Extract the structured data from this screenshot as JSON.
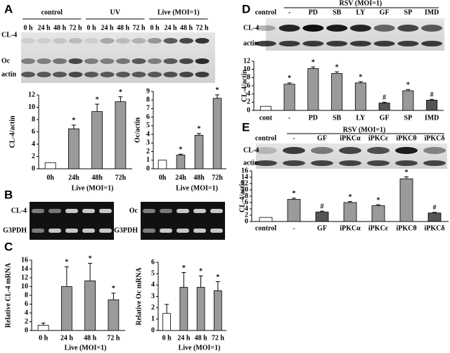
{
  "panel_labels": [
    "A",
    "B",
    "C",
    "D",
    "E"
  ],
  "blot_A": {
    "groups": [
      "control",
      "UV",
      "Live (MOI=1)"
    ],
    "lanes": [
      "0 h",
      "24 h",
      "48 h",
      "72 h",
      "0 h",
      "24 h",
      "48 h",
      "72 h",
      "0 h",
      "24 h",
      "48 h",
      "72 h"
    ],
    "rows": [
      "CL-4",
      "Oc",
      "actin"
    ]
  },
  "gel_B": {
    "left_rows": [
      "CL-4",
      "G3PDH"
    ],
    "right_rows": [
      "Oc",
      "G3PDH"
    ]
  },
  "blot_D": {
    "treatment": "RSV (MOI=1)",
    "control_label": "control",
    "lanes": [
      "-",
      "PD",
      "SB",
      "LY",
      "GF",
      "SP",
      "IMD"
    ],
    "rows": [
      "CL-4",
      "actin"
    ]
  },
  "blot_E": {
    "treatment": "RSV (MOI=1)",
    "lanes": [
      "control",
      "-",
      "GF",
      "iPKCα",
      "iPKCε",
      "iPKCθ",
      "iPKCδ"
    ],
    "rows": [
      "CL-4",
      "actin"
    ]
  },
  "chart_data": [
    {
      "type": "bar",
      "y_label": "CL-4/actin",
      "x_label": "Live (MOI=1)",
      "categories": [
        "0h",
        "24h",
        "48h",
        "72h"
      ],
      "values": [
        1,
        6.5,
        9.3,
        10.9
      ],
      "errors": [
        null,
        0.6,
        1.2,
        0.8
      ],
      "markers": [
        null,
        "*",
        "*",
        "*"
      ],
      "colors": [
        "#ffffff",
        "#9a9a9a",
        "#9a9a9a",
        "#9a9a9a"
      ],
      "ylim": [
        0,
        12
      ],
      "yticks": [
        0,
        2,
        4,
        6,
        8,
        10,
        12
      ]
    },
    {
      "type": "bar",
      "y_label": "Oc/actin",
      "x_label": "Live (MOI=1)",
      "categories": [
        "0h",
        "24h",
        "48h",
        "72h"
      ],
      "values": [
        1,
        1.6,
        3.9,
        8.2
      ],
      "errors": [
        null,
        0.1,
        0.2,
        0.4
      ],
      "markers": [
        null,
        "*",
        "*",
        "*"
      ],
      "colors": [
        "#ffffff",
        "#9a9a9a",
        "#9a9a9a",
        "#9a9a9a"
      ],
      "ylim": [
        0,
        9
      ],
      "yticks": [
        0,
        1,
        2,
        3,
        4,
        5,
        6,
        7,
        8,
        9
      ]
    },
    {
      "type": "bar",
      "y_label": "Relative CL-4 mRNA",
      "x_label": "Live (MOI=1)",
      "categories": [
        "0 h",
        "24 h",
        "48 h",
        "72 h"
      ],
      "values": [
        1.2,
        10,
        11.3,
        7
      ],
      "errors": [
        0.5,
        4.5,
        4,
        1.5
      ],
      "markers": [
        null,
        "*",
        "*",
        "*"
      ],
      "colors": [
        "#ffffff",
        "#9a9a9a",
        "#9a9a9a",
        "#9a9a9a"
      ],
      "ylim": [
        0,
        16
      ],
      "yticks": [
        0,
        2,
        4,
        6,
        8,
        10,
        12,
        14,
        16
      ]
    },
    {
      "type": "bar",
      "y_label": "Relative Oc mRNA",
      "x_label": "Live (MOI=1)",
      "categories": [
        "0 h",
        "24 h",
        "48 h",
        "72 h"
      ],
      "values": [
        1.5,
        3.8,
        3.8,
        3.5
      ],
      "errors": [
        0.8,
        1.3,
        1,
        0.8
      ],
      "markers": [
        null,
        "*",
        "*",
        "*"
      ],
      "colors": [
        "#ffffff",
        "#9a9a9a",
        "#9a9a9a",
        "#9a9a9a"
      ],
      "ylim": [
        0,
        6
      ],
      "yticks": [
        0,
        1,
        2,
        3,
        4,
        5,
        6
      ]
    },
    {
      "type": "bar",
      "y_label": "CL-4/actin",
      "categories": [
        "cont",
        "-",
        "PD",
        "SB",
        "LY",
        "GF",
        "SP",
        "IMD"
      ],
      "values": [
        1,
        6.4,
        10.2,
        9,
        6.7,
        1.8,
        4.8,
        2.5
      ],
      "errors": [
        null,
        0.3,
        0.4,
        0.4,
        0.3,
        0.2,
        0.3,
        0.2
      ],
      "markers": [
        null,
        "*",
        "*",
        "*",
        "*",
        "#",
        "*",
        "#"
      ],
      "colors": [
        "#ffffff",
        "#9a9a9a",
        "#9a9a9a",
        "#9a9a9a",
        "#9a9a9a",
        "#555555",
        "#9a9a9a",
        "#555555"
      ],
      "ylim": [
        0,
        12
      ],
      "yticks": [
        0,
        2,
        4,
        6,
        8,
        10,
        12
      ]
    },
    {
      "type": "bar",
      "y_label": "CL-4/actin",
      "categories": [
        "control",
        "-",
        "GF",
        "iPKCα",
        "iPKCε",
        "iPKCθ",
        "iPKCδ"
      ],
      "values": [
        1.3,
        7,
        3,
        6,
        5,
        13.5,
        2.7
      ],
      "errors": [
        null,
        0.4,
        0.3,
        0.3,
        0.3,
        0.6,
        0.2
      ],
      "markers": [
        null,
        "*",
        "#",
        "*",
        "*",
        "*",
        "#"
      ],
      "colors": [
        "#ffffff",
        "#9a9a9a",
        "#555555",
        "#9a9a9a",
        "#9a9a9a",
        "#9a9a9a",
        "#555555"
      ],
      "ylim": [
        0,
        16
      ],
      "yticks": [
        0,
        2,
        4,
        6,
        8,
        10,
        12,
        14,
        16
      ]
    }
  ]
}
